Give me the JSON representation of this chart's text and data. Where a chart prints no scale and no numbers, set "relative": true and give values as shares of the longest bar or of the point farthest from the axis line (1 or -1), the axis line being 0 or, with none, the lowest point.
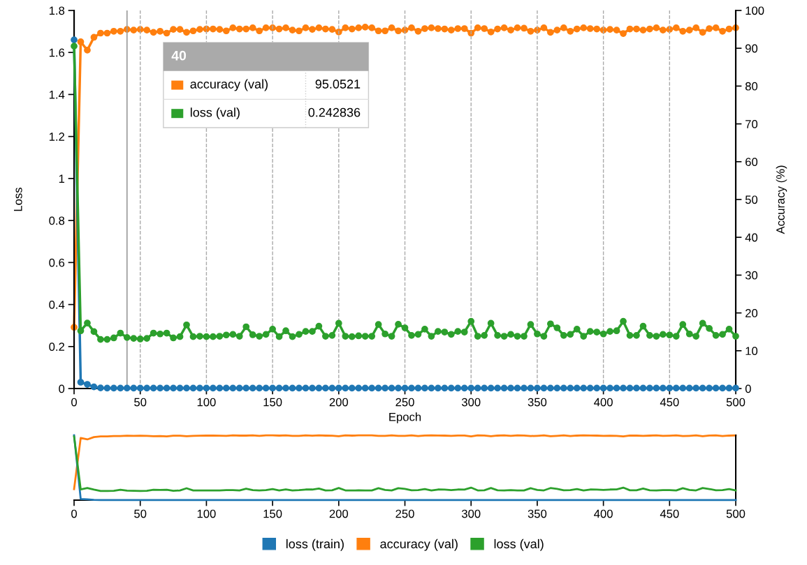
{
  "chart_data": [
    {
      "type": "line",
      "xlabel": "Epoch",
      "ylabel": "Loss",
      "y2label": "Accuracy (%)",
      "x": [
        0,
        5,
        10,
        15,
        20,
        25,
        30,
        35,
        40,
        45,
        50,
        55,
        60,
        65,
        70,
        75,
        80,
        85,
        90,
        95,
        100,
        105,
        110,
        115,
        120,
        125,
        130,
        135,
        140,
        145,
        150,
        155,
        160,
        165,
        170,
        175,
        180,
        185,
        190,
        195,
        200,
        205,
        210,
        215,
        220,
        225,
        230,
        235,
        240,
        245,
        250,
        255,
        260,
        265,
        270,
        275,
        280,
        285,
        290,
        295,
        300,
        305,
        310,
        315,
        320,
        325,
        330,
        335,
        340,
        345,
        350,
        355,
        360,
        365,
        370,
        375,
        380,
        385,
        390,
        395,
        400,
        405,
        410,
        415,
        420,
        425,
        430,
        435,
        440,
        445,
        450,
        455,
        460,
        465,
        470,
        475,
        480,
        485,
        490,
        495,
        500
      ],
      "series": [
        {
          "name": "loss (train)",
          "color": "#1f77b4",
          "values": [
            1.66,
            0.03,
            0.02,
            0.008,
            0.003,
            0.002,
            0.002,
            0.002,
            0.002,
            0.002,
            0.002,
            0.002,
            0.002,
            0.002,
            0.002,
            0.002,
            0.002,
            0.002,
            0.002,
            0.002,
            0.002,
            0.002,
            0.002,
            0.002,
            0.002,
            0.002,
            0.002,
            0.002,
            0.002,
            0.002,
            0.002,
            0.002,
            0.002,
            0.002,
            0.002,
            0.002,
            0.002,
            0.002,
            0.002,
            0.002,
            0.002,
            0.002,
            0.002,
            0.002,
            0.002,
            0.002,
            0.002,
            0.002,
            0.002,
            0.002,
            0.002,
            0.002,
            0.002,
            0.002,
            0.002,
            0.002,
            0.002,
            0.002,
            0.002,
            0.002,
            0.002,
            0.002,
            0.002,
            0.002,
            0.002,
            0.002,
            0.002,
            0.002,
            0.002,
            0.002,
            0.002,
            0.002,
            0.002,
            0.002,
            0.002,
            0.002,
            0.002,
            0.002,
            0.002,
            0.002,
            0.002,
            0.002,
            0.002,
            0.002,
            0.002,
            0.002,
            0.002,
            0.002,
            0.002,
            0.002,
            0.002,
            0.002,
            0.002,
            0.002,
            0.002,
            0.002,
            0.002,
            0.002,
            0.002,
            0.002,
            0.002
          ]
        },
        {
          "name": "accuracy (val)",
          "color": "#ff7f0e",
          "axis": "y2",
          "values": [
            16.2,
            91.7,
            89.5,
            92.9,
            94.0,
            94.0,
            94.5,
            94.5,
            95.0,
            94.8,
            95.0,
            94.8,
            94.2,
            94.5,
            94.0,
            95.0,
            95.0,
            94.2,
            94.6,
            95.0,
            95.1,
            95.1,
            95.0,
            94.6,
            95.4,
            95.1,
            95.1,
            95.4,
            94.6,
            95.4,
            95.4,
            95.1,
            95.4,
            94.8,
            94.6,
            95.4,
            95.0,
            95.4,
            95.1,
            95.0,
            94.3,
            95.4,
            95.1,
            95.4,
            95.6,
            95.4,
            94.6,
            94.6,
            95.4,
            94.6,
            94.8,
            95.4,
            94.5,
            95.2,
            95.4,
            95.2,
            95.1,
            94.8,
            95.2,
            95.2,
            94.0,
            95.4,
            95.2,
            94.3,
            95.1,
            95.4,
            94.8,
            95.4,
            95.3,
            94.5,
            94.8,
            95.4,
            94.2,
            94.8,
            95.4,
            94.5,
            95.1,
            95.4,
            95.2,
            95.1,
            94.8,
            95.0,
            94.8,
            93.9,
            95.1,
            95.1,
            94.8,
            95.1,
            95.4,
            94.8,
            95.0,
            95.4,
            94.5,
            94.8,
            95.4,
            94.2,
            95.2,
            95.4,
            94.5,
            95.1,
            95.4
          ]
        },
        {
          "name": "loss (val)",
          "color": "#2ca02c",
          "values": [
            1.63,
            0.275,
            0.312,
            0.271,
            0.234,
            0.234,
            0.241,
            0.264,
            0.243,
            0.239,
            0.236,
            0.239,
            0.264,
            0.26,
            0.264,
            0.241,
            0.247,
            0.303,
            0.247,
            0.249,
            0.247,
            0.247,
            0.249,
            0.255,
            0.258,
            0.249,
            0.294,
            0.256,
            0.249,
            0.258,
            0.283,
            0.247,
            0.275,
            0.247,
            0.258,
            0.272,
            0.272,
            0.297,
            0.249,
            0.253,
            0.311,
            0.249,
            0.247,
            0.251,
            0.249,
            0.249,
            0.305,
            0.26,
            0.249,
            0.306,
            0.289,
            0.253,
            0.258,
            0.283,
            0.249,
            0.272,
            0.269,
            0.258,
            0.272,
            0.269,
            0.32,
            0.249,
            0.253,
            0.311,
            0.253,
            0.249,
            0.258,
            0.249,
            0.249,
            0.305,
            0.26,
            0.249,
            0.308,
            0.289,
            0.253,
            0.258,
            0.283,
            0.249,
            0.272,
            0.269,
            0.26,
            0.272,
            0.275,
            0.32,
            0.253,
            0.253,
            0.297,
            0.253,
            0.249,
            0.258,
            0.255,
            0.249,
            0.305,
            0.26,
            0.249,
            0.311,
            0.286,
            0.253,
            0.258,
            0.283,
            0.249
          ]
        }
      ],
      "xlim": [
        0,
        500
      ],
      "xticks": [
        0,
        50,
        100,
        150,
        200,
        250,
        300,
        350,
        400,
        450,
        500
      ],
      "ylim": [
        0,
        1.8
      ],
      "yticks": [
        0,
        0.2,
        0.4,
        0.6,
        0.8,
        1,
        1.2,
        1.4,
        1.6,
        1.8
      ],
      "y2lim": [
        0,
        100
      ],
      "y2ticks": [
        0,
        10,
        20,
        30,
        40,
        50,
        60,
        70,
        80,
        90,
        100
      ],
      "grid": "x",
      "marker": "circle",
      "line_style": "solid",
      "legend": "bottom",
      "ref_lines": [
        {
          "axis": "x",
          "value": 40,
          "color": "#999999"
        }
      ],
      "annotations": [
        "40",
        "accuracy (val)",
        "95.0521",
        "loss (val)",
        "0.242836"
      ]
    },
    {
      "type": "line",
      "x": [
        0,
        5,
        10,
        15,
        20,
        25,
        30,
        35,
        40,
        45,
        50,
        55,
        60,
        65,
        70,
        75,
        80,
        85,
        90,
        95,
        100,
        105,
        110,
        115,
        120,
        125,
        130,
        135,
        140,
        145,
        150,
        155,
        160,
        165,
        170,
        175,
        180,
        185,
        190,
        195,
        200,
        205,
        210,
        215,
        220,
        225,
        230,
        235,
        240,
        245,
        250,
        255,
        260,
        265,
        270,
        275,
        280,
        285,
        290,
        295,
        300,
        305,
        310,
        315,
        320,
        325,
        330,
        335,
        340,
        345,
        350,
        355,
        360,
        365,
        370,
        375,
        380,
        385,
        390,
        395,
        400,
        405,
        410,
        415,
        420,
        425,
        430,
        435,
        440,
        445,
        450,
        455,
        460,
        465,
        470,
        475,
        480,
        485,
        490,
        495,
        500
      ],
      "series": [
        {
          "color": "#1f77b4",
          "values": [
            1,
            0.018,
            0.012,
            0.005,
            0.002,
            0.001,
            0.001,
            0.001,
            0.001,
            0.001,
            0.001,
            0.001,
            0.001,
            0.001,
            0.001,
            0.001,
            0.001,
            0.001,
            0.001,
            0.001,
            0.001,
            0.001,
            0.001,
            0.001,
            0.001,
            0.001,
            0.001,
            0.001,
            0.001,
            0.001,
            0.001,
            0.001,
            0.001,
            0.001,
            0.001,
            0.001,
            0.001,
            0.001,
            0.001,
            0.001,
            0.001,
            0.001,
            0.001,
            0.001,
            0.001,
            0.001,
            0.001,
            0.001,
            0.001,
            0.001,
            0.001,
            0.001,
            0.001,
            0.001,
            0.001,
            0.001,
            0.001,
            0.001,
            0.001,
            0.001,
            0.001,
            0.001,
            0.001,
            0.001,
            0.001,
            0.001,
            0.001,
            0.001,
            0.001,
            0.001,
            0.001,
            0.001,
            0.001,
            0.001,
            0.001,
            0.001,
            0.001,
            0.001,
            0.001,
            0.001,
            0.001,
            0.001,
            0.001,
            0.001,
            0.001,
            0.001,
            0.001,
            0.001,
            0.001,
            0.001,
            0.001,
            0.001,
            0.001,
            0.001,
            0.001,
            0.001,
            0.001,
            0.001,
            0.001,
            0.001,
            0.001
          ]
        },
        {
          "color": "#ff7f0e",
          "axis": "y2",
          "values": [
            0.169,
            0.959,
            0.936,
            0.972,
            0.983,
            0.983,
            0.988,
            0.988,
            0.994,
            0.992,
            0.994,
            0.992,
            0.985,
            0.988,
            0.983,
            0.994,
            0.994,
            0.985,
            0.99,
            0.994,
            0.995,
            0.995,
            0.994,
            0.99,
            0.998,
            0.995,
            0.995,
            0.998,
            0.99,
            0.998,
            0.998,
            0.995,
            0.998,
            0.992,
            0.99,
            0.998,
            0.994,
            0.998,
            0.995,
            0.994,
            0.986,
            0.998,
            0.995,
            0.998,
            1,
            0.998,
            0.99,
            0.99,
            0.998,
            0.99,
            0.992,
            0.998,
            0.988,
            0.996,
            0.998,
            0.996,
            0.995,
            0.992,
            0.996,
            0.996,
            0.983,
            0.998,
            0.996,
            0.986,
            0.995,
            0.998,
            0.992,
            0.998,
            0.997,
            0.988,
            0.992,
            0.998,
            0.985,
            0.992,
            0.998,
            0.988,
            0.995,
            0.998,
            0.996,
            0.995,
            0.992,
            0.994,
            0.992,
            0.982,
            0.995,
            0.995,
            0.992,
            0.995,
            0.998,
            0.992,
            0.994,
            0.998,
            0.988,
            0.992,
            0.998,
            0.985,
            0.996,
            0.998,
            0.988,
            0.995,
            0.998
          ]
        },
        {
          "color": "#2ca02c",
          "values": [
            0.982,
            0.166,
            0.188,
            0.163,
            0.141,
            0.141,
            0.145,
            0.159,
            0.146,
            0.144,
            0.142,
            0.144,
            0.159,
            0.157,
            0.159,
            0.145,
            0.149,
            0.183,
            0.149,
            0.15,
            0.149,
            0.149,
            0.15,
            0.154,
            0.155,
            0.15,
            0.177,
            0.154,
            0.15,
            0.155,
            0.17,
            0.149,
            0.166,
            0.149,
            0.155,
            0.164,
            0.164,
            0.179,
            0.15,
            0.152,
            0.187,
            0.15,
            0.149,
            0.151,
            0.15,
            0.15,
            0.184,
            0.157,
            0.15,
            0.184,
            0.174,
            0.152,
            0.155,
            0.17,
            0.15,
            0.164,
            0.162,
            0.155,
            0.164,
            0.162,
            0.193,
            0.15,
            0.152,
            0.187,
            0.152,
            0.15,
            0.155,
            0.15,
            0.15,
            0.184,
            0.157,
            0.15,
            0.186,
            0.174,
            0.152,
            0.155,
            0.17,
            0.15,
            0.164,
            0.162,
            0.157,
            0.164,
            0.166,
            0.193,
            0.152,
            0.152,
            0.179,
            0.152,
            0.15,
            0.155,
            0.154,
            0.15,
            0.184,
            0.157,
            0.15,
            0.187,
            0.172,
            0.152,
            0.155,
            0.17,
            0.15
          ]
        }
      ],
      "xlim": [
        0,
        500
      ],
      "xticks": [
        0,
        50,
        100,
        150,
        200,
        250,
        300,
        350,
        400,
        450,
        500
      ],
      "relative": true,
      "tick_labels": "x",
      "marker": "none",
      "line_style": "solid"
    }
  ]
}
